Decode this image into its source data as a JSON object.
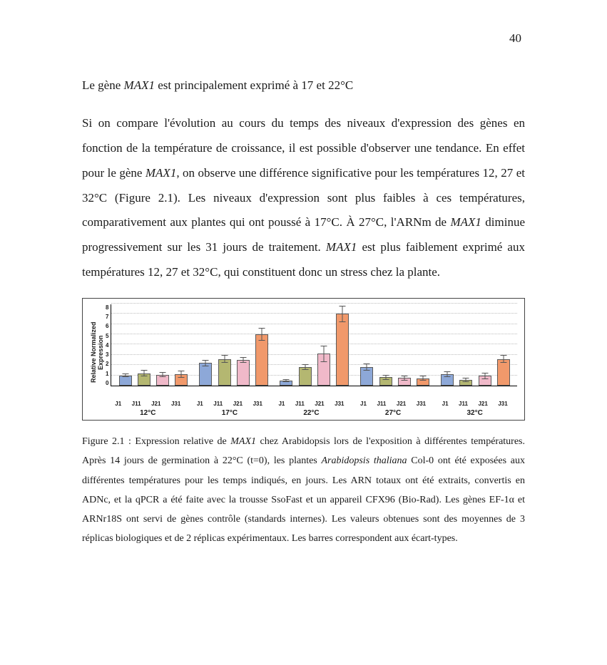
{
  "page_number": "40",
  "heading_pre": "Le gène ",
  "heading_gene": "MAX1",
  "heading_post": " est principalement exprimé à 17 et 22°C",
  "body_p1_a": "Si on compare l'évolution au cours du temps des niveaux d'expression des gènes en fonction de la température de croissance, il est possible d'observer une tendance. En effet pour le gène ",
  "body_p1_b": "MAX1",
  "body_p1_c": ", on observe une différence significative pour les températures 12, 27 et 32°C (Figure 2.1). Les niveaux d'expression sont plus faibles à ces températures, comparativement aux plantes qui ont poussé à 17°C. À 27°C, l'ARNm de ",
  "body_p1_d": "MAX1",
  "body_p1_e": " diminue progressivement sur les 31 jours de traitement. ",
  "body_p1_f": "MAX1",
  "body_p1_g": " est plus faiblement exprimé aux températures 12, 27 et 32°C, qui constituent donc un stress chez la plante.",
  "caption_a": "Figure 2.1 : Expression relative de ",
  "caption_b": "MAX1",
  "caption_c": " chez Arabidopsis lors de l'exposition à différentes températures. Après 14 jours de germination à 22°C (t=0), les plantes ",
  "caption_d": "Arabidopsis thaliana",
  "caption_e": " Col-0 ont été exposées aux différentes températures pour les temps indiqués, en jours. Les ARN totaux ont été extraits, convertis en ADNc, et la qPCR a été faite avec la trousse SsoFast et un appareil CFX96 (Bio-Rad). Les gènes EF-1α et ARNr18S ont servi de gènes contrôle (standards internes). Les valeurs obtenues sont des moyennes de 3 réplicas biologiques et de 2 réplicas expérimentaux. Les barres correspondent aux écart-types.",
  "chart": {
    "type": "bar",
    "y_label": "Relative Normalized Expression",
    "ymax": 8,
    "yticks": [
      8,
      7,
      6,
      5,
      4,
      3,
      2,
      1,
      0
    ],
    "bar_colors": [
      "#8da8d8",
      "#b4b771",
      "#f0b9c9",
      "#f1996b"
    ],
    "bar_border": "#5a5a5a",
    "grid_color": "#bdbdbd",
    "background": "#ffffff",
    "x_tick_labels": [
      "J1",
      "J11",
      "J21",
      "J31"
    ],
    "temp_labels": [
      "12°C",
      "17°C",
      "22°C",
      "27°C",
      "32°C"
    ],
    "groups": [
      {
        "temp": "12°C",
        "bars": [
          {
            "v": 1.0,
            "e": 0.15
          },
          {
            "v": 1.2,
            "e": 0.3
          },
          {
            "v": 1.05,
            "e": 0.25
          },
          {
            "v": 1.1,
            "e": 0.35
          }
        ]
      },
      {
        "temp": "17°C",
        "bars": [
          {
            "v": 2.2,
            "e": 0.3
          },
          {
            "v": 2.6,
            "e": 0.4
          },
          {
            "v": 2.5,
            "e": 0.3
          },
          {
            "v": 5.0,
            "e": 0.6
          }
        ]
      },
      {
        "temp": "22°C",
        "bars": [
          {
            "v": 0.5,
            "e": 0.15
          },
          {
            "v": 1.8,
            "e": 0.3
          },
          {
            "v": 3.1,
            "e": 0.8
          },
          {
            "v": 7.0,
            "e": 0.8
          }
        ]
      },
      {
        "temp": "27°C",
        "bars": [
          {
            "v": 1.8,
            "e": 0.35
          },
          {
            "v": 0.8,
            "e": 0.25
          },
          {
            "v": 0.75,
            "e": 0.25
          },
          {
            "v": 0.7,
            "e": 0.25
          }
        ]
      },
      {
        "temp": "32°C",
        "bars": [
          {
            "v": 1.1,
            "e": 0.3
          },
          {
            "v": 0.55,
            "e": 0.2
          },
          {
            "v": 0.95,
            "e": 0.3
          },
          {
            "v": 2.6,
            "e": 0.4
          }
        ]
      }
    ]
  }
}
